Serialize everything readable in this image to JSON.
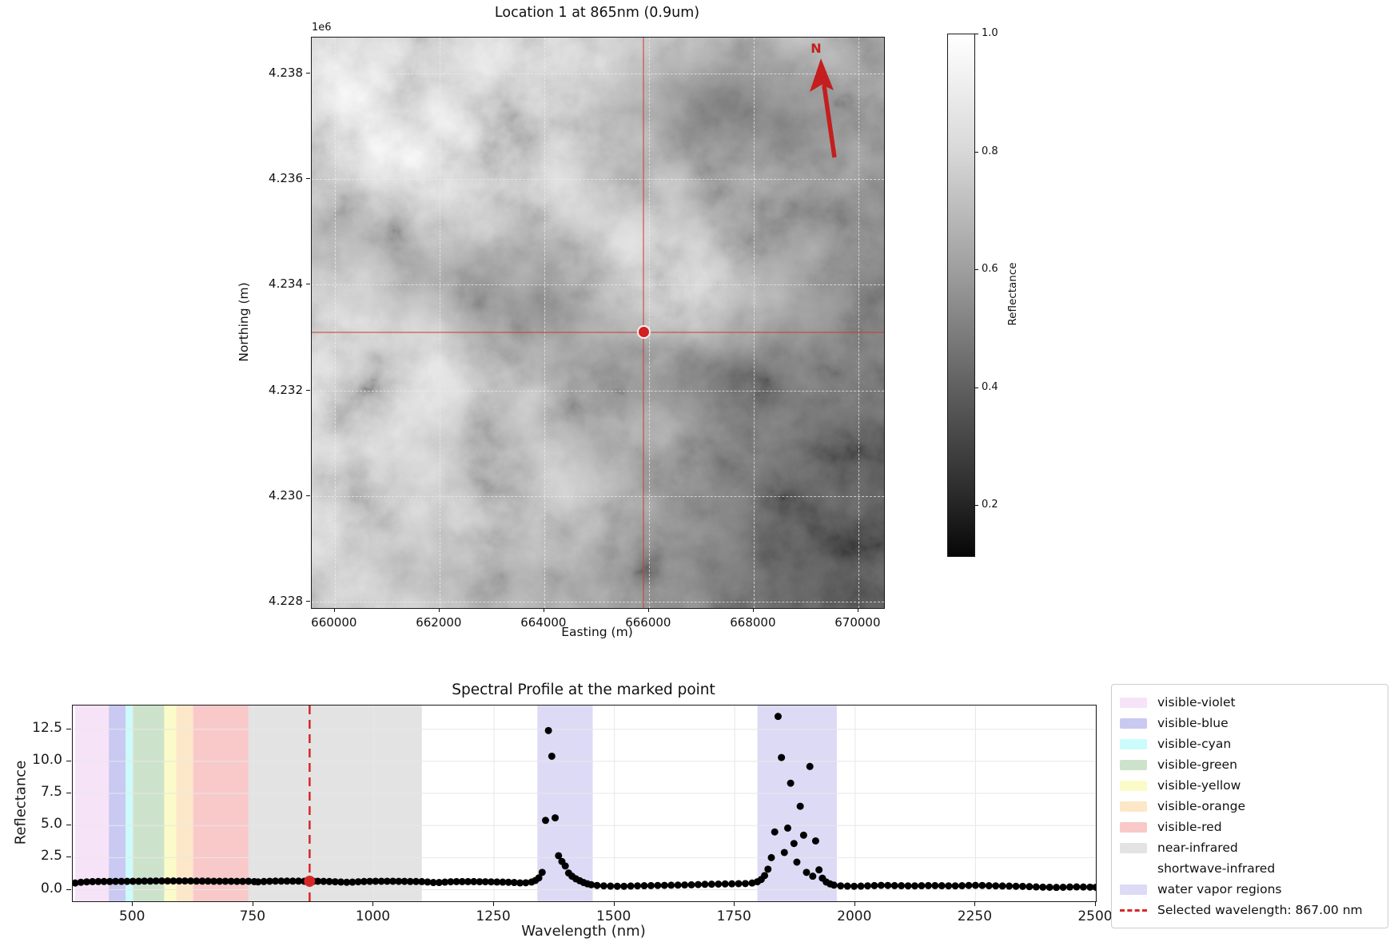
{
  "figure1": {
    "title": "Location 1 at 865nm (0.9um)",
    "offset_label": "1e6",
    "xlabel": "Easting (m)",
    "ylabel": "Northing (m)",
    "north_label": "N",
    "axes": {
      "xlim": [
        659560,
        670490
      ],
      "ylim": [
        4227880,
        4238680
      ],
      "xticks": [
        660000,
        662000,
        664000,
        666000,
        668000,
        670000
      ],
      "xtick_labels": [
        "660000",
        "662000",
        "664000",
        "666000",
        "668000",
        "670000"
      ],
      "yticks": [
        4238000,
        4236000,
        4234000,
        4232000,
        4230000,
        4228000
      ],
      "ytick_labels": [
        "4.238",
        "4.236",
        "4.234",
        "4.232",
        "4.230",
        "4.228"
      ]
    },
    "marker": {
      "easting": 665900,
      "northing": 4233100
    },
    "colorbar": {
      "label": "Reflectance",
      "ticks": [
        1.0,
        0.8,
        0.6,
        0.4,
        0.2
      ],
      "tick_labels": [
        "1.0",
        "0.8",
        "0.6",
        "0.4",
        "0.2"
      ],
      "vmin": 0.115,
      "vmax": 1.0
    }
  },
  "figure2": {
    "title": "Spectral Profile at the marked point",
    "xlabel": "Wavelength (nm)",
    "ylabel": "Reflectance"
  },
  "chart_data": [
    {
      "type": "heatmap",
      "title": "Location 1 at 865nm (0.9um)",
      "xlabel": "Easting (m)",
      "ylabel": "Northing (m)",
      "xlim": [
        659560,
        670490
      ],
      "ylim": [
        4227880,
        4238680
      ],
      "colormap": "gray",
      "colorbar_label": "Reflectance",
      "colorbar_range": [
        0.115,
        1.0
      ],
      "colorbar_ticks": [
        1.0,
        0.8,
        0.6,
        0.4,
        0.2
      ],
      "marked_point": {
        "easting": 665900,
        "northing": 4233100
      },
      "annotations": [
        "north arrow labeled N",
        "red crosshair through marked point"
      ]
    },
    {
      "type": "scatter",
      "title": "Spectral Profile at the marked point",
      "xlabel": "Wavelength (nm)",
      "ylabel": "Reflectance",
      "xlim": [
        375,
        2500
      ],
      "ylim": [
        -0.9,
        14.35
      ],
      "xticks": [
        500,
        750,
        1000,
        1250,
        1500,
        1750,
        2000,
        2250,
        2500
      ],
      "xtick_labels": [
        "500",
        "750",
        "1000",
        "1250",
        "1500",
        "1750",
        "2000",
        "2250",
        "2500"
      ],
      "yticks": [
        0.0,
        2.5,
        5.0,
        7.5,
        10.0,
        12.5
      ],
      "ytick_labels": [
        "0.0",
        "2.5",
        "5.0",
        "7.5",
        "10.0",
        "12.5"
      ],
      "grid": true,
      "point_color": "#000000",
      "bands": [
        {
          "name": "visible-violet",
          "ranges": [
            [
              380,
              450
            ]
          ],
          "color": "#f6e3f8"
        },
        {
          "name": "visible-blue",
          "ranges": [
            [
              450,
              485
            ]
          ],
          "color": "#c9c9f1"
        },
        {
          "name": "visible-cyan",
          "ranges": [
            [
              485,
              500
            ]
          ],
          "color": "#cbfbfb"
        },
        {
          "name": "visible-green",
          "ranges": [
            [
              500,
              565
            ]
          ],
          "color": "#cde2cb"
        },
        {
          "name": "visible-yellow",
          "ranges": [
            [
              565,
              590
            ]
          ],
          "color": "#fbfbc9"
        },
        {
          "name": "visible-orange",
          "ranges": [
            [
              590,
              625
            ]
          ],
          "color": "#fce8c8"
        },
        {
          "name": "visible-red",
          "ranges": [
            [
              625,
              740
            ]
          ],
          "color": "#f9c9c9"
        },
        {
          "name": "near-infrared",
          "ranges": [
            [
              740,
              1100
            ]
          ],
          "color": "#e3e3e3"
        },
        {
          "name": "shortwave-infrared",
          "ranges": [
            [
              1100,
              2500
            ]
          ],
          "color": "none"
        },
        {
          "name": "water vapor regions",
          "ranges": [
            [
              1340,
              1455
            ],
            [
              1797,
              1962
            ]
          ],
          "color": "#dddaf6"
        }
      ],
      "selected_wavelength": {
        "x": 867,
        "color": "#d62728",
        "label": "Selected wavelength: 867.00 nm"
      },
      "marked": {
        "x": 867,
        "y": 0.66,
        "color": "#d62728"
      },
      "legend": [
        {
          "label": "visible-violet",
          "swatch": "#f6e3f8"
        },
        {
          "label": "visible-blue",
          "swatch": "#c9c9f1"
        },
        {
          "label": "visible-cyan",
          "swatch": "#cbfbfb"
        },
        {
          "label": "visible-green",
          "swatch": "#cde2cb"
        },
        {
          "label": "visible-yellow",
          "swatch": "#fbfbc9"
        },
        {
          "label": "visible-orange",
          "swatch": "#fce8c8"
        },
        {
          "label": "visible-red",
          "swatch": "#f9c9c9"
        },
        {
          "label": "near-infrared",
          "swatch": "#e3e3e3"
        },
        {
          "label": "shortwave-infrared",
          "swatch": "none"
        },
        {
          "label": "water vapor regions",
          "swatch": "#dddaf6"
        },
        {
          "label": "Selected wavelength: 867.00 nm",
          "swatch": "dashed-red"
        }
      ],
      "points": [
        [
          380,
          0.52
        ],
        [
          392,
          0.58
        ],
        [
          404,
          0.61
        ],
        [
          416,
          0.63
        ],
        [
          428,
          0.64
        ],
        [
          440,
          0.64
        ],
        [
          452,
          0.64
        ],
        [
          464,
          0.65
        ],
        [
          476,
          0.65
        ],
        [
          488,
          0.65
        ],
        [
          500,
          0.66
        ],
        [
          512,
          0.66
        ],
        [
          524,
          0.67
        ],
        [
          536,
          0.67
        ],
        [
          548,
          0.68
        ],
        [
          560,
          0.68
        ],
        [
          572,
          0.68
        ],
        [
          584,
          0.68
        ],
        [
          596,
          0.68
        ],
        [
          608,
          0.68
        ],
        [
          620,
          0.68
        ],
        [
          632,
          0.67
        ],
        [
          644,
          0.67
        ],
        [
          656,
          0.67
        ],
        [
          668,
          0.66
        ],
        [
          680,
          0.66
        ],
        [
          692,
          0.66
        ],
        [
          704,
          0.66
        ],
        [
          716,
          0.65
        ],
        [
          728,
          0.65
        ],
        [
          740,
          0.66
        ],
        [
          752,
          0.63
        ],
        [
          760,
          0.61
        ],
        [
          772,
          0.64
        ],
        [
          784,
          0.66
        ],
        [
          796,
          0.67
        ],
        [
          808,
          0.67
        ],
        [
          820,
          0.67
        ],
        [
          832,
          0.67
        ],
        [
          844,
          0.67
        ],
        [
          856,
          0.66
        ],
        [
          875,
          0.66
        ],
        [
          884,
          0.66
        ],
        [
          896,
          0.65
        ],
        [
          908,
          0.64
        ],
        [
          920,
          0.62
        ],
        [
          932,
          0.6
        ],
        [
          944,
          0.58
        ],
        [
          956,
          0.59
        ],
        [
          968,
          0.62
        ],
        [
          980,
          0.64
        ],
        [
          992,
          0.65
        ],
        [
          1004,
          0.66
        ],
        [
          1016,
          0.66
        ],
        [
          1028,
          0.66
        ],
        [
          1040,
          0.66
        ],
        [
          1052,
          0.65
        ],
        [
          1064,
          0.65
        ],
        [
          1076,
          0.64
        ],
        [
          1088,
          0.64
        ],
        [
          1100,
          0.63
        ],
        [
          1112,
          0.6
        ],
        [
          1124,
          0.56
        ],
        [
          1136,
          0.56
        ],
        [
          1148,
          0.59
        ],
        [
          1160,
          0.62
        ],
        [
          1172,
          0.63
        ],
        [
          1184,
          0.63
        ],
        [
          1196,
          0.63
        ],
        [
          1208,
          0.63
        ],
        [
          1220,
          0.62
        ],
        [
          1232,
          0.62
        ],
        [
          1244,
          0.61
        ],
        [
          1256,
          0.6
        ],
        [
          1268,
          0.59
        ],
        [
          1280,
          0.58
        ],
        [
          1292,
          0.56
        ],
        [
          1304,
          0.53
        ],
        [
          1316,
          0.54
        ],
        [
          1328,
          0.6
        ],
        [
          1336,
          0.72
        ],
        [
          1343,
          0.92
        ],
        [
          1350,
          1.35
        ],
        [
          1357,
          5.4
        ],
        [
          1363,
          12.4
        ],
        [
          1370,
          10.4
        ],
        [
          1377,
          5.6
        ],
        [
          1384,
          2.65
        ],
        [
          1391,
          2.2
        ],
        [
          1398,
          1.85
        ],
        [
          1405,
          1.3
        ],
        [
          1412,
          1.05
        ],
        [
          1420,
          0.85
        ],
        [
          1428,
          0.7
        ],
        [
          1436,
          0.56
        ],
        [
          1444,
          0.46
        ],
        [
          1452,
          0.39
        ],
        [
          1464,
          0.33
        ],
        [
          1478,
          0.3
        ],
        [
          1492,
          0.28
        ],
        [
          1506,
          0.27
        ],
        [
          1520,
          0.27
        ],
        [
          1534,
          0.29
        ],
        [
          1548,
          0.3
        ],
        [
          1562,
          0.31
        ],
        [
          1576,
          0.32
        ],
        [
          1590,
          0.33
        ],
        [
          1604,
          0.34
        ],
        [
          1618,
          0.35
        ],
        [
          1632,
          0.36
        ],
        [
          1646,
          0.37
        ],
        [
          1660,
          0.38
        ],
        [
          1674,
          0.4
        ],
        [
          1688,
          0.42
        ],
        [
          1702,
          0.43
        ],
        [
          1716,
          0.44
        ],
        [
          1730,
          0.45
        ],
        [
          1744,
          0.46
        ],
        [
          1758,
          0.47
        ],
        [
          1772,
          0.48
        ],
        [
          1786,
          0.52
        ],
        [
          1797,
          0.62
        ],
        [
          1805,
          0.8
        ],
        [
          1812,
          1.1
        ],
        [
          1819,
          1.6
        ],
        [
          1826,
          2.5
        ],
        [
          1833,
          4.5
        ],
        [
          1840,
          13.5
        ],
        [
          1847,
          10.3
        ],
        [
          1853,
          2.9
        ],
        [
          1860,
          4.8
        ],
        [
          1866,
          8.3
        ],
        [
          1873,
          3.6
        ],
        [
          1879,
          2.15
        ],
        [
          1886,
          6.5
        ],
        [
          1893,
          4.25
        ],
        [
          1899,
          1.35
        ],
        [
          1906,
          9.6
        ],
        [
          1912,
          1.05
        ],
        [
          1918,
          3.8
        ],
        [
          1925,
          1.55
        ],
        [
          1932,
          0.9
        ],
        [
          1940,
          0.6
        ],
        [
          1948,
          0.45
        ],
        [
          1956,
          0.36
        ],
        [
          1970,
          0.3
        ],
        [
          1984,
          0.28
        ],
        [
          1998,
          0.27
        ],
        [
          2012,
          0.28
        ],
        [
          2026,
          0.3
        ],
        [
          2040,
          0.32
        ],
        [
          2054,
          0.34
        ],
        [
          2068,
          0.33
        ],
        [
          2082,
          0.32
        ],
        [
          2096,
          0.31
        ],
        [
          2110,
          0.3
        ],
        [
          2124,
          0.3
        ],
        [
          2138,
          0.31
        ],
        [
          2152,
          0.32
        ],
        [
          2166,
          0.32
        ],
        [
          2180,
          0.31
        ],
        [
          2194,
          0.3
        ],
        [
          2208,
          0.3
        ],
        [
          2222,
          0.31
        ],
        [
          2236,
          0.33
        ],
        [
          2250,
          0.34
        ],
        [
          2264,
          0.33
        ],
        [
          2278,
          0.31
        ],
        [
          2292,
          0.3
        ],
        [
          2306,
          0.29
        ],
        [
          2320,
          0.28
        ],
        [
          2334,
          0.27
        ],
        [
          2348,
          0.26
        ],
        [
          2362,
          0.24
        ],
        [
          2376,
          0.22
        ],
        [
          2390,
          0.2
        ],
        [
          2404,
          0.19
        ],
        [
          2418,
          0.18
        ],
        [
          2432,
          0.19
        ],
        [
          2446,
          0.21
        ],
        [
          2460,
          0.22
        ],
        [
          2474,
          0.21
        ],
        [
          2488,
          0.2
        ],
        [
          2500,
          0.19
        ]
      ]
    }
  ]
}
